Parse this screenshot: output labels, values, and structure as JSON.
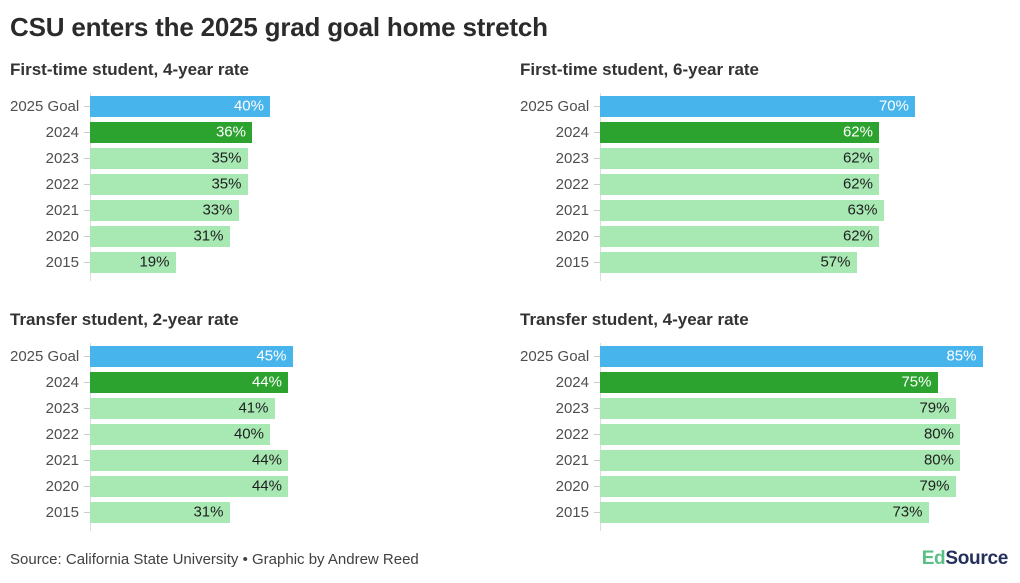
{
  "title": "CSU enters the 2025 grad goal home stretch",
  "colors": {
    "goal_bar": "#48b4ec",
    "current_bar": "#2da32f",
    "past_bar": "#a7e8b3",
    "value_text_on_dark": "#ffffff",
    "value_text_on_light": "#1f1f1f",
    "axis_line": "#dddddd",
    "logo_green": "#5abf85",
    "logo_navy": "#25305c"
  },
  "chart_data": [
    {
      "type": "bar",
      "orientation": "horizontal",
      "title": "First-time student, 4-year rate",
      "categories": [
        "2025 Goal",
        "2024",
        "2023",
        "2022",
        "2021",
        "2020",
        "2015"
      ],
      "values": [
        40,
        36,
        35,
        35,
        33,
        31,
        19
      ],
      "labels": [
        "40%",
        "36%",
        "35%",
        "35%",
        "33%",
        "31%",
        "19%"
      ],
      "roles": [
        "goal",
        "current",
        "past",
        "past",
        "past",
        "past",
        "past"
      ],
      "xlim": [
        0,
        100
      ],
      "grid": false,
      "legend": false
    },
    {
      "type": "bar",
      "orientation": "horizontal",
      "title": "First-time student, 6-year rate",
      "categories": [
        "2025 Goal",
        "2024",
        "2023",
        "2022",
        "2021",
        "2020",
        "2015"
      ],
      "values": [
        70,
        62,
        62,
        62,
        63,
        62,
        57
      ],
      "labels": [
        "70%",
        "62%",
        "62%",
        "62%",
        "63%",
        "62%",
        "57%"
      ],
      "roles": [
        "goal",
        "current",
        "past",
        "past",
        "past",
        "past",
        "past"
      ],
      "xlim": [
        0,
        100
      ],
      "grid": false,
      "legend": false
    },
    {
      "type": "bar",
      "orientation": "horizontal",
      "title": "Transfer student, 2-year rate",
      "categories": [
        "2025 Goal",
        "2024",
        "2023",
        "2022",
        "2021",
        "2020",
        "2015"
      ],
      "values": [
        45,
        44,
        41,
        40,
        44,
        44,
        31
      ],
      "labels": [
        "45%",
        "44%",
        "41%",
        "40%",
        "44%",
        "44%",
        "31%"
      ],
      "roles": [
        "goal",
        "current",
        "past",
        "past",
        "past",
        "past",
        "past"
      ],
      "xlim": [
        0,
        100
      ],
      "grid": false,
      "legend": false
    },
    {
      "type": "bar",
      "orientation": "horizontal",
      "title": "Transfer student, 4-year rate",
      "categories": [
        "2025 Goal",
        "2024",
        "2023",
        "2022",
        "2021",
        "2020",
        "2015"
      ],
      "values": [
        85,
        75,
        79,
        80,
        80,
        79,
        73
      ],
      "labels": [
        "85%",
        "75%",
        "79%",
        "80%",
        "80%",
        "79%",
        "73%"
      ],
      "roles": [
        "goal",
        "current",
        "past",
        "past",
        "past",
        "past",
        "past"
      ],
      "xlim": [
        0,
        100
      ],
      "grid": false,
      "legend": false
    }
  ],
  "footer": {
    "source_line": "Source: California State University • Graphic by Andrew Reed",
    "logo_ed": "Ed",
    "logo_source": "Source"
  }
}
